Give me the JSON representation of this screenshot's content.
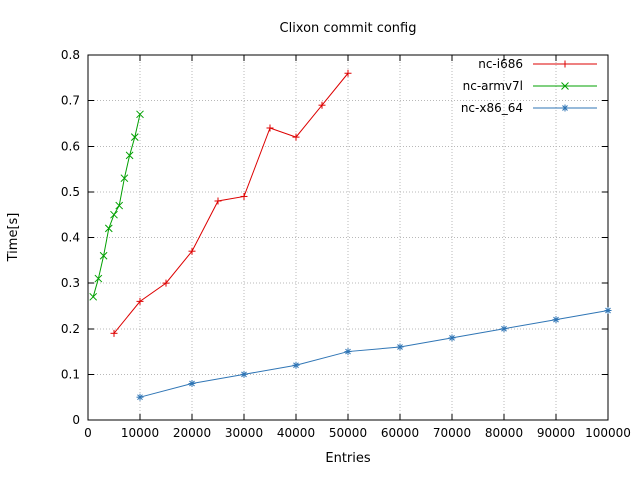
{
  "chart_data": {
    "type": "line",
    "title": "Clixon commit config",
    "xlabel": "Entries",
    "ylabel": "Time[s]",
    "xlim": [
      0,
      100000
    ],
    "ylim": [
      0,
      0.8
    ],
    "xticks": [
      0,
      10000,
      20000,
      30000,
      40000,
      50000,
      60000,
      70000,
      80000,
      90000,
      100000
    ],
    "yticks": [
      0,
      0.1,
      0.2,
      0.3,
      0.4,
      0.5,
      0.6,
      0.7,
      0.8
    ],
    "grid": true,
    "legend_position": "top-right-inside",
    "colors": {
      "grid": "#b8b8b8",
      "border": "#000000",
      "background": "#ffffff"
    },
    "series": [
      {
        "name": "nc-i686",
        "color": "#dd0000",
        "marker": "plus",
        "points": [
          [
            5000,
            0.19
          ],
          [
            10000,
            0.26
          ],
          [
            15000,
            0.3
          ],
          [
            20000,
            0.37
          ],
          [
            25000,
            0.48
          ],
          [
            30000,
            0.49
          ],
          [
            35000,
            0.64
          ],
          [
            40000,
            0.62
          ],
          [
            45000,
            0.69
          ],
          [
            50000,
            0.76
          ]
        ]
      },
      {
        "name": "nc-armv7l",
        "color": "#00a000",
        "marker": "cross",
        "points": [
          [
            1000,
            0.27
          ],
          [
            2000,
            0.31
          ],
          [
            3000,
            0.36
          ],
          [
            4000,
            0.42
          ],
          [
            5000,
            0.45
          ],
          [
            6000,
            0.47
          ],
          [
            7000,
            0.53
          ],
          [
            8000,
            0.58
          ],
          [
            9000,
            0.62
          ],
          [
            10000,
            0.67
          ]
        ]
      },
      {
        "name": "nc-x86_64",
        "color": "#2f75b5",
        "marker": "star",
        "points": [
          [
            10000,
            0.05
          ],
          [
            20000,
            0.08
          ],
          [
            30000,
            0.1
          ],
          [
            40000,
            0.12
          ],
          [
            50000,
            0.15
          ],
          [
            60000,
            0.16
          ],
          [
            70000,
            0.18
          ],
          [
            80000,
            0.2
          ],
          [
            90000,
            0.22
          ],
          [
            100000,
            0.24
          ]
        ]
      }
    ]
  }
}
